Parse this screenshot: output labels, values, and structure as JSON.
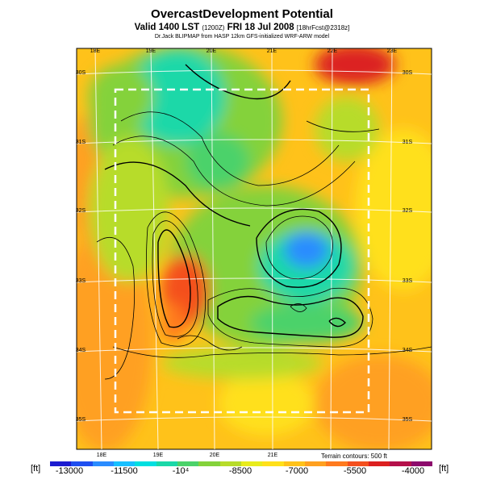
{
  "header": {
    "title": "OvercastDevelopment Potential",
    "subtitle_main": "Valid 1400 LST",
    "subtitle_code": "(1200Z)",
    "subtitle_date": "FRI 18 Jul 2008",
    "subtitle_fcst": "[18hrFcst@2318z]",
    "credit": "Dr.Jack BLIPMAP from HASP 12km GFS-initialized WRF-ARW model"
  },
  "map": {
    "lon_labels_top": [
      "18E",
      "19E",
      "20E",
      "21E",
      "22E",
      "23E"
    ],
    "lon_labels_bottom": [
      "18E",
      "19E",
      "20E",
      "21E"
    ],
    "lat_labels": [
      "30S",
      "31S",
      "32S",
      "33S",
      "34S",
      "35S"
    ],
    "terrain_note": "Terrain contours: 500 ft",
    "inner_box": "dashed-white"
  },
  "colorbar": {
    "unit_left": "[ft]",
    "unit_right": "[ft]",
    "labels": [
      "-13000",
      "-11500",
      "-10⁴",
      "-8500",
      "-7000",
      "-5500",
      "-4000"
    ],
    "colors": [
      "#1c1cd0",
      "#1f4ff0",
      "#2a8cff",
      "#17c0ff",
      "#00dfe0",
      "#1ad8a8",
      "#4bd26a",
      "#84d23a",
      "#b7dc2a",
      "#e8ec1c",
      "#ffe01a",
      "#ffc21a",
      "#ffa020",
      "#ff7a1e",
      "#f4501e",
      "#dc2020",
      "#b4104a",
      "#8c0a6c"
    ]
  }
}
